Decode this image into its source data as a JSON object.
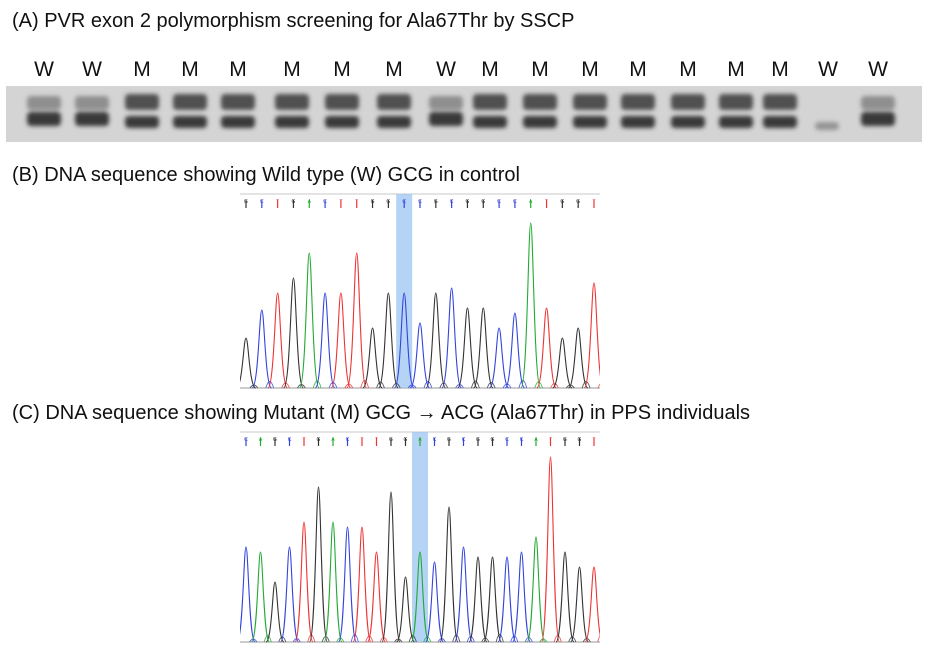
{
  "captions": {
    "a": "(A) PVR exon 2 polymorphism screening for Ala67Thr by SSCP",
    "b": "(B) DNA sequence showing Wild type (W) GCG in control",
    "c": "(C) DNA sequence showing Mutant (M) GCG → ACG (Ala67Thr) in PPS individuals"
  },
  "gel": {
    "lanes": [
      "W",
      "W",
      "M",
      "M",
      "M",
      "M",
      "M",
      "M",
      "W",
      "M",
      "M",
      "M",
      "M",
      "M",
      "M",
      "M",
      "W",
      "W"
    ],
    "lane_label_x": [
      44,
      92,
      142,
      190,
      238,
      292,
      342,
      394,
      446,
      490,
      540,
      590,
      638,
      688,
      736,
      780,
      828,
      878
    ]
  },
  "chrom_b": {
    "bases": [
      "G",
      "C",
      "T",
      "G",
      "A",
      "C",
      "T",
      "T",
      "G",
      "G",
      "C",
      "C",
      "G",
      "C",
      "G",
      "G",
      "C",
      "C",
      "A",
      "T",
      "G",
      "G",
      "T"
    ],
    "highlight_index": 10,
    "colors": {
      "A": "#22aa33",
      "C": "#3344dd",
      "G": "#333333",
      "T": "#ee3333"
    }
  },
  "chrom_c": {
    "bases": [
      "C",
      "A",
      "G",
      "C",
      "T",
      "G",
      "A",
      "C",
      "T",
      "T",
      "G",
      "G",
      "A",
      "C",
      "G",
      "C",
      "G",
      "G",
      "C",
      "C",
      "A",
      "T",
      "G",
      "G",
      "T"
    ],
    "highlight_index": 12,
    "colors": {
      "A": "#22aa33",
      "C": "#3344dd",
      "G": "#333333",
      "T": "#ee3333"
    }
  }
}
